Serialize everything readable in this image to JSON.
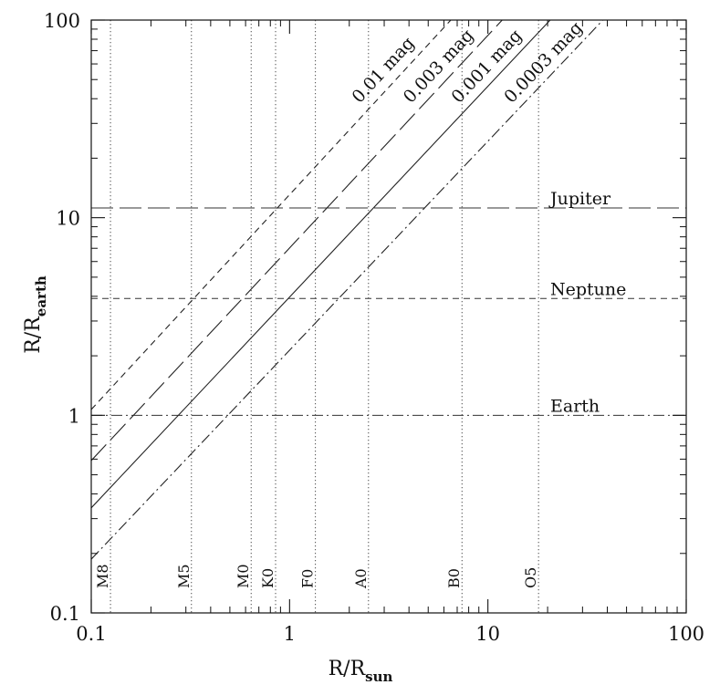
{
  "chart_data": {
    "type": "line",
    "x_scale": "log",
    "y_scale": "log",
    "xlim": [
      0.1,
      100
    ],
    "ylim": [
      0.1,
      100
    ],
    "x_ticks": [
      "0.1",
      "1",
      "10",
      "100"
    ],
    "y_ticks": [
      "0.1",
      "1",
      "10",
      "100"
    ],
    "xlabel": {
      "main": "R/R",
      "sub": "sun"
    },
    "ylabel": {
      "main": "R/R",
      "sub": "earth"
    },
    "series": [
      {
        "name": "0.01 mag",
        "style": "short-dash",
        "points": [
          [
            0.1,
            1.07
          ],
          [
            6.5,
            100
          ]
        ]
      },
      {
        "name": "0.003 mag",
        "style": "long-dash",
        "points": [
          [
            0.1,
            0.59
          ],
          [
            11.8,
            100
          ]
        ]
      },
      {
        "name": "0.001 mag",
        "style": "solid",
        "points": [
          [
            0.1,
            0.34
          ],
          [
            20.6,
            100
          ]
        ]
      },
      {
        "name": "0.0003 mag",
        "style": "dash-dot",
        "points": [
          [
            0.1,
            0.187
          ],
          [
            38,
            100
          ]
        ]
      }
    ],
    "planet_lines": [
      {
        "name": "Jupiter",
        "y": 11.2,
        "style": "long-dash"
      },
      {
        "name": "Neptune",
        "y": 3.9,
        "style": "short-dash"
      },
      {
        "name": "Earth",
        "y": 1.0,
        "style": "dash-dot"
      }
    ],
    "spectral_types": [
      {
        "name": "M8",
        "x": 0.125
      },
      {
        "name": "M5",
        "x": 0.32
      },
      {
        "name": "M0",
        "x": 0.64
      },
      {
        "name": "K0",
        "x": 0.85
      },
      {
        "name": "F0",
        "x": 1.35
      },
      {
        "name": "A0",
        "x": 2.5
      },
      {
        "name": "B0",
        "x": 7.4
      },
      {
        "name": "O5",
        "x": 18
      }
    ]
  }
}
